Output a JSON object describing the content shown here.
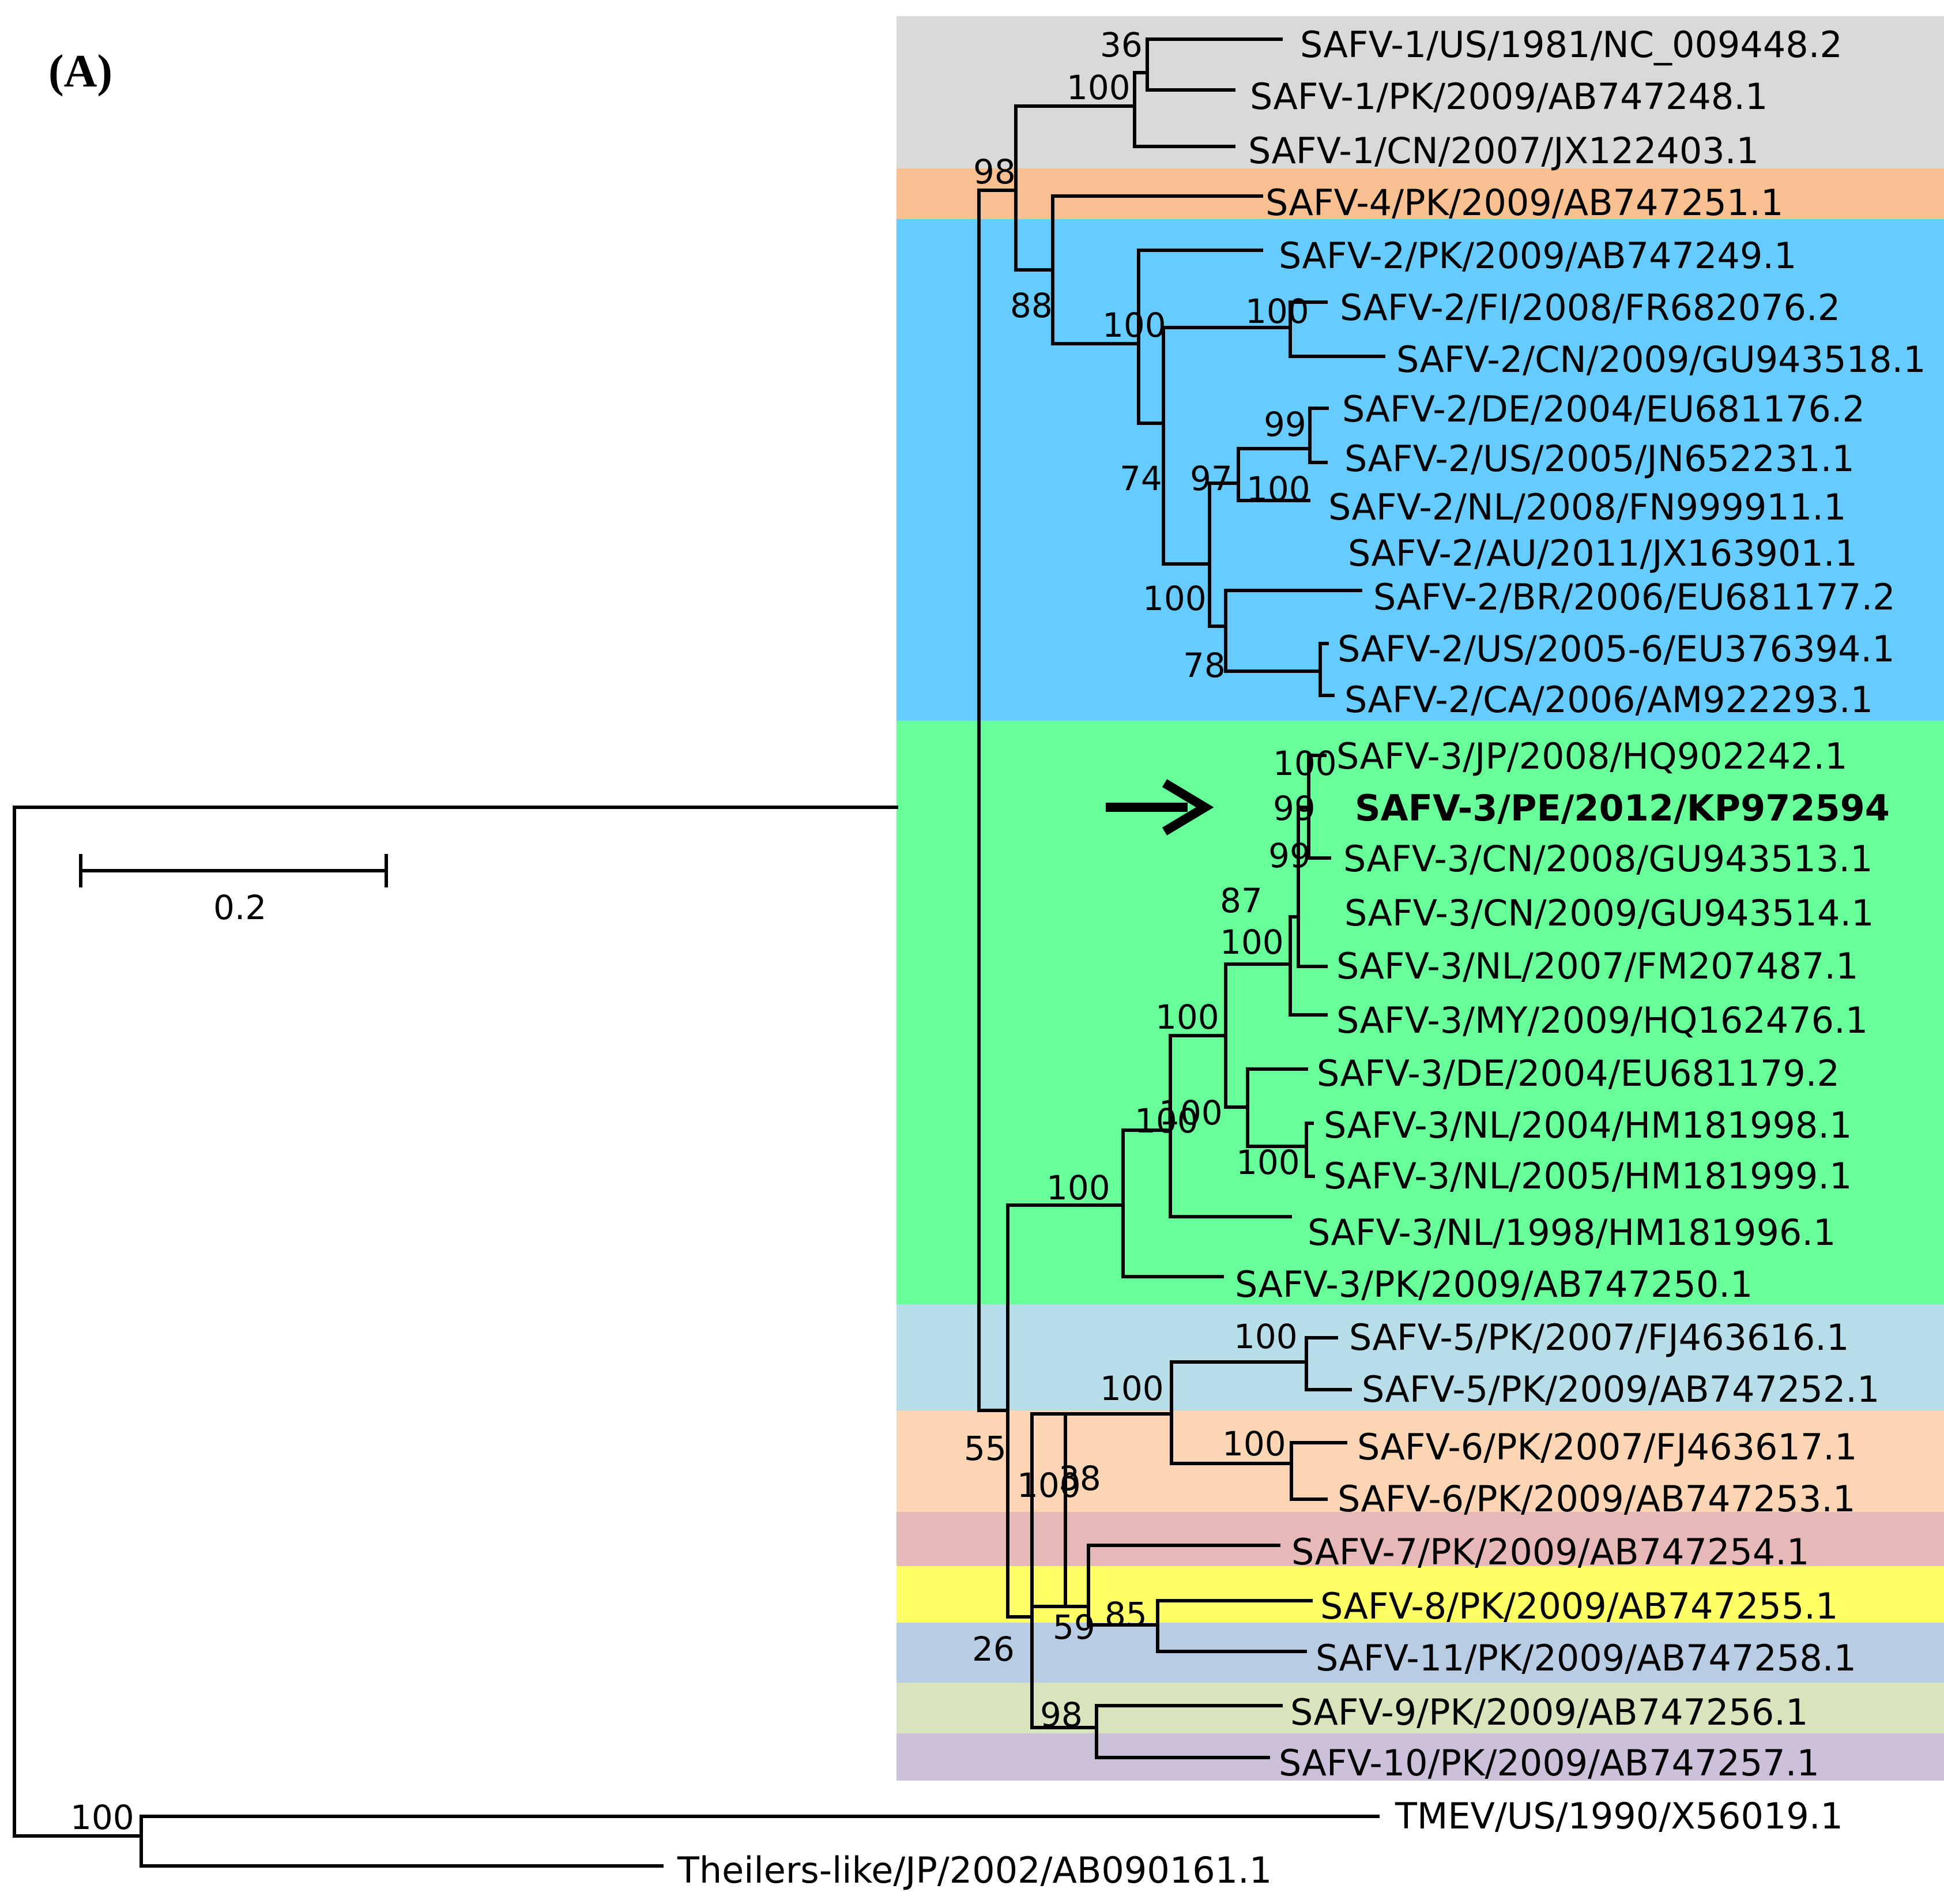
{
  "panel_label": "(A)",
  "scale_bar": {
    "label": "0.2",
    "value": 0.2
  },
  "highlight_arrow": {
    "icon": "arrow-right-icon",
    "points_to": "SAFV-3/PE/2012/KP972594"
  },
  "bands": [
    {
      "name": "SAFV-1",
      "color": "#d9d9d9"
    },
    {
      "name": "SAFV-4",
      "color": "#f8c090"
    },
    {
      "name": "SAFV-2",
      "color": "#66ccff"
    },
    {
      "name": "SAFV-3",
      "color": "#66ff99"
    },
    {
      "name": "SAFV-5",
      "color": "#b6dde8"
    },
    {
      "name": "SAFV-6",
      "color": "#fcd5b4"
    },
    {
      "name": "SAFV-7",
      "color": "#e6b8b7"
    },
    {
      "name": "SAFV-8",
      "color": "#ffff66"
    },
    {
      "name": "SAFV-11",
      "color": "#b8cce4"
    },
    {
      "name": "SAFV-9",
      "color": "#d8e4bc"
    },
    {
      "name": "SAFV-10",
      "color": "#ccc0da"
    }
  ],
  "leaves": [
    "SAFV-1/US/1981/NC_009448.2",
    "SAFV-1/PK/2009/AB747248.1",
    "SAFV-1/CN/2007/JX122403.1",
    "SAFV-4/PK/2009/AB747251.1",
    "SAFV-2/PK/2009/AB747249.1",
    "SAFV-2/FI/2008/FR682076.2",
    "SAFV-2/CN/2009/GU943518.1",
    "SAFV-2/DE/2004/EU681176.2",
    "SAFV-2/US/2005/JN652231.1",
    "SAFV-2/NL/2008/FN999911.1",
    "SAFV-2/AU/2011/JX163901.1",
    "SAFV-2/BR/2006/EU681177.2",
    "SAFV-2/US/2005-6/EU376394.1",
    "SAFV-2/CA/2006/AM922293.1",
    "SAFV-3/JP/2008/HQ902242.1",
    "SAFV-3/PE/2012/KP972594",
    "SAFV-3/CN/2008/GU943513.1",
    "SAFV-3/CN/2009/GU943514.1",
    "SAFV-3/NL/2007/FM207487.1",
    "SAFV-3/MY/2009/HQ162476.1",
    "SAFV-3/DE/2004/EU681179.2",
    "SAFV-3/NL/2004/HM181998.1",
    "SAFV-3/NL/2005/HM181999.1",
    "SAFV-3/NL/1998/HM181996.1",
    "SAFV-3/PK/2009/AB747250.1",
    "SAFV-5/PK/2007/FJ463616.1",
    "SAFV-5/PK/2009/AB747252.1",
    "SAFV-6/PK/2007/FJ463617.1",
    "SAFV-6/PK/2009/AB747253.1",
    "SAFV-7/PK/2009/AB747254.1",
    "SAFV-8/PK/2009/AB747255.1",
    "SAFV-11/PK/2009/AB747258.1",
    "SAFV-9/PK/2009/AB747256.1",
    "SAFV-10/PK/2009/AB747257.1",
    "TMEV/US/1990/X56019.1",
    "Theilers-like/JP/2002/AB090161.1"
  ],
  "support_values": [
    "36",
    "100",
    "98",
    "88",
    "100",
    "100",
    "74",
    "99",
    "97",
    "100",
    "100",
    "78",
    "100",
    "99",
    "99",
    "87",
    "100",
    "100",
    "100",
    "100",
    "100",
    "100",
    "100",
    "100",
    "55",
    "100",
    "100",
    "38",
    "59",
    "85",
    "26",
    "98",
    "100"
  ]
}
